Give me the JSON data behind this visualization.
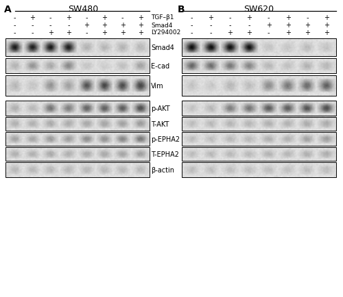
{
  "fig_width": 5.0,
  "fig_height": 4.35,
  "dpi": 100,
  "panel_A_title": "SW480",
  "panel_B_title": "SW620",
  "panel_A_label": "A",
  "panel_B_label": "B",
  "treatment_rows_A": [
    [
      "-",
      "+",
      "-",
      "+",
      "-",
      "+",
      "-",
      "+"
    ],
    [
      "-",
      "-",
      "-",
      "-",
      "+",
      "+",
      "+",
      "+"
    ],
    [
      "-",
      "-",
      "+",
      "+",
      "-",
      "+",
      "+",
      "+"
    ]
  ],
  "treatment_rows_B": [
    [
      "-",
      "+",
      "-",
      "+",
      "-",
      "+",
      "-",
      "+"
    ],
    [
      "-",
      "-",
      "-",
      "-",
      "+",
      "+",
      "+",
      "+"
    ],
    [
      "-",
      "-",
      "+",
      "+",
      "-",
      "+",
      "+",
      "+"
    ]
  ],
  "row_label_names": [
    "TGF–β1",
    "Smad4",
    "LY294002"
  ],
  "wb_labels": [
    "Smad4",
    "E-cad",
    "Vim",
    "p-AKT",
    "T-AKT",
    "p-EPHA2",
    "T-EPHA2",
    "β-actin"
  ],
  "wb_A": {
    "Smad4": [
      0.08,
      0.1,
      0.08,
      0.1,
      0.8,
      0.82,
      0.8,
      0.82
    ],
    "E-cad": [
      0.8,
      0.65,
      0.75,
      0.6,
      0.88,
      0.92,
      0.85,
      0.72
    ],
    "Vim": [
      0.82,
      0.88,
      0.65,
      0.72,
      0.35,
      0.3,
      0.32,
      0.28
    ],
    "p-AKT": [
      0.78,
      0.82,
      0.5,
      0.55,
      0.42,
      0.4,
      0.38,
      0.32
    ],
    "T-AKT": [
      0.78,
      0.78,
      0.75,
      0.76,
      0.74,
      0.72,
      0.7,
      0.68
    ],
    "p-EPHA2": [
      0.72,
      0.74,
      0.68,
      0.7,
      0.62,
      0.64,
      0.58,
      0.52
    ],
    "T-EPHA2": [
      0.78,
      0.78,
      0.75,
      0.78,
      0.76,
      0.74,
      0.72,
      0.7
    ],
    "b-actin": [
      0.82,
      0.82,
      0.82,
      0.82,
      0.82,
      0.82,
      0.82,
      0.82
    ]
  },
  "wb_B": {
    "Smad4": [
      0.04,
      0.04,
      0.04,
      0.04,
      0.88,
      0.88,
      0.85,
      0.88
    ],
    "E-cad": [
      0.45,
      0.48,
      0.52,
      0.58,
      0.82,
      0.85,
      0.8,
      0.82
    ],
    "Vim": [
      0.88,
      0.9,
      0.82,
      0.85,
      0.62,
      0.52,
      0.48,
      0.42
    ],
    "p-AKT": [
      0.88,
      0.82,
      0.55,
      0.5,
      0.38,
      0.38,
      0.35,
      0.32
    ],
    "T-AKT": [
      0.85,
      0.82,
      0.8,
      0.8,
      0.78,
      0.78,
      0.76,
      0.76
    ],
    "p-EPHA2": [
      0.85,
      0.85,
      0.82,
      0.82,
      0.78,
      0.78,
      0.72,
      0.7
    ],
    "T-EPHA2": [
      0.85,
      0.82,
      0.82,
      0.82,
      0.8,
      0.8,
      0.78,
      0.77
    ],
    "b-actin": [
      0.85,
      0.85,
      0.85,
      0.85,
      0.85,
      0.85,
      0.85,
      0.85
    ]
  },
  "background_color": "#ffffff",
  "text_color": "#000000"
}
